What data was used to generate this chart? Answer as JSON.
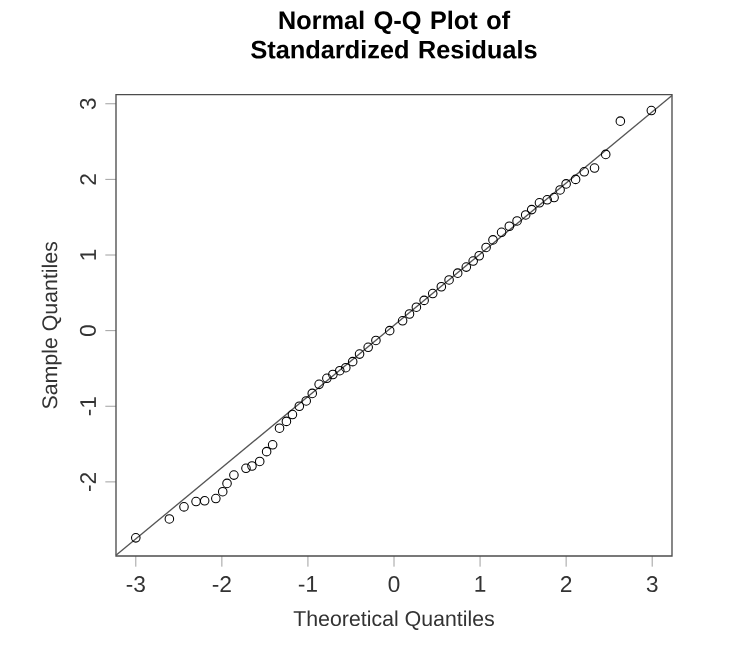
{
  "chart_data": {
    "type": "scatter",
    "title": "Normal Q-Q Plot of Standardized Residuals",
    "xlabel": "Theoretical Quantiles",
    "ylabel": "Sample Quantiles",
    "xlim": [
      -3.23,
      3.23
    ],
    "ylim": [
      -2.98,
      3.12
    ],
    "xticks": [
      -3,
      -2,
      -1,
      0,
      1,
      2,
      3
    ],
    "yticks": [
      -2,
      -1,
      0,
      1,
      2,
      3
    ],
    "series": [
      {
        "marker": "circle",
        "color": "#000000",
        "x": [
          -3.0,
          -2.61,
          -2.44,
          -2.3,
          -2.2,
          -2.07,
          -1.99,
          -1.94,
          -1.86,
          -1.72,
          -1.65,
          -1.56,
          -1.48,
          -1.41,
          -1.33,
          -1.25,
          -1.18,
          -1.1,
          -1.02,
          -0.95,
          -0.87,
          -0.78,
          -0.71,
          -0.63,
          -0.56,
          -0.48,
          -0.4,
          -0.3,
          -0.21,
          -0.05,
          0.1,
          0.18,
          0.26,
          0.35,
          0.45,
          0.55,
          0.64,
          0.74,
          0.84,
          0.92,
          0.99,
          1.07,
          1.15,
          1.25,
          1.34,
          1.43,
          1.53,
          1.6,
          1.69,
          1.78,
          1.86,
          1.93,
          2.0,
          2.11,
          2.21,
          2.33,
          2.46,
          2.63,
          2.99
        ],
        "values": [
          -2.74,
          -2.49,
          -2.33,
          -2.26,
          -2.25,
          -2.22,
          -2.13,
          -2.02,
          -1.91,
          -1.82,
          -1.79,
          -1.73,
          -1.6,
          -1.51,
          -1.29,
          -1.2,
          -1.11,
          -1.0,
          -0.93,
          -0.83,
          -0.71,
          -0.63,
          -0.58,
          -0.53,
          -0.49,
          -0.41,
          -0.31,
          -0.22,
          -0.13,
          0.0,
          0.13,
          0.22,
          0.31,
          0.4,
          0.49,
          0.58,
          0.67,
          0.76,
          0.84,
          0.92,
          0.99,
          1.1,
          1.2,
          1.3,
          1.38,
          1.45,
          1.53,
          1.6,
          1.69,
          1.73,
          1.76,
          1.86,
          1.94,
          2.0,
          2.1,
          2.15,
          2.33,
          2.77,
          2.91
        ]
      },
      {
        "type": "line",
        "marker": "none",
        "color": "#555555",
        "x": [
          -3.23,
          3.23
        ],
        "values": [
          -2.97,
          3.11
        ]
      }
    ]
  }
}
